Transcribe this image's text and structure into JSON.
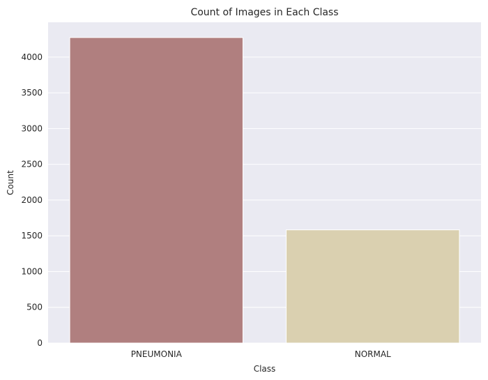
{
  "chart_data": {
    "type": "bar",
    "title": "Count of Images in Each Class",
    "xlabel": "Class",
    "ylabel": "Count",
    "categories": [
      "PNEUMONIA",
      "NORMAL"
    ],
    "values": [
      4273,
      1583
    ],
    "colors": [
      "#b07f7f",
      "#dad0b0"
    ],
    "ylim": [
      0,
      4486
    ],
    "yticks": [
      0,
      500,
      1000,
      1500,
      2000,
      2500,
      3000,
      3500,
      4000
    ],
    "grid": true,
    "background_color": "#eaeaf2",
    "grid_color": "#ffffff"
  }
}
